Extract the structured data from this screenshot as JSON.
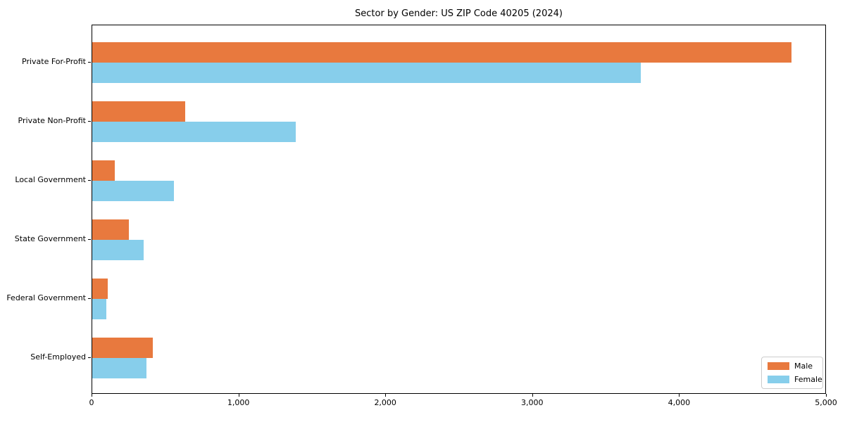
{
  "title": "Sector by Gender: US ZIP Code 40205 (2024)",
  "chart_data": {
    "type": "bar",
    "orientation": "horizontal",
    "title": "Sector by Gender: US ZIP Code 40205 (2024)",
    "categories": [
      "Private For-Profit",
      "Private Non-Profit",
      "Local Government",
      "State Government",
      "Federal Government",
      "Self-Employed"
    ],
    "series": [
      {
        "name": "Male",
        "color": "#E8793E",
        "values": [
          4770,
          635,
          155,
          250,
          105,
          415
        ]
      },
      {
        "name": "Female",
        "color": "#87CEEB",
        "values": [
          3740,
          1390,
          555,
          350,
          95,
          370
        ]
      }
    ],
    "xlim": [
      0,
      5000
    ],
    "xticks": [
      0,
      1000,
      2000,
      3000,
      4000,
      5000
    ],
    "xtick_labels": [
      "0",
      "1,000",
      "2,000",
      "3,000",
      "4,000",
      "5,000"
    ],
    "xlabel": "",
    "ylabel": "",
    "grid": false,
    "legend_position": "lower right"
  }
}
